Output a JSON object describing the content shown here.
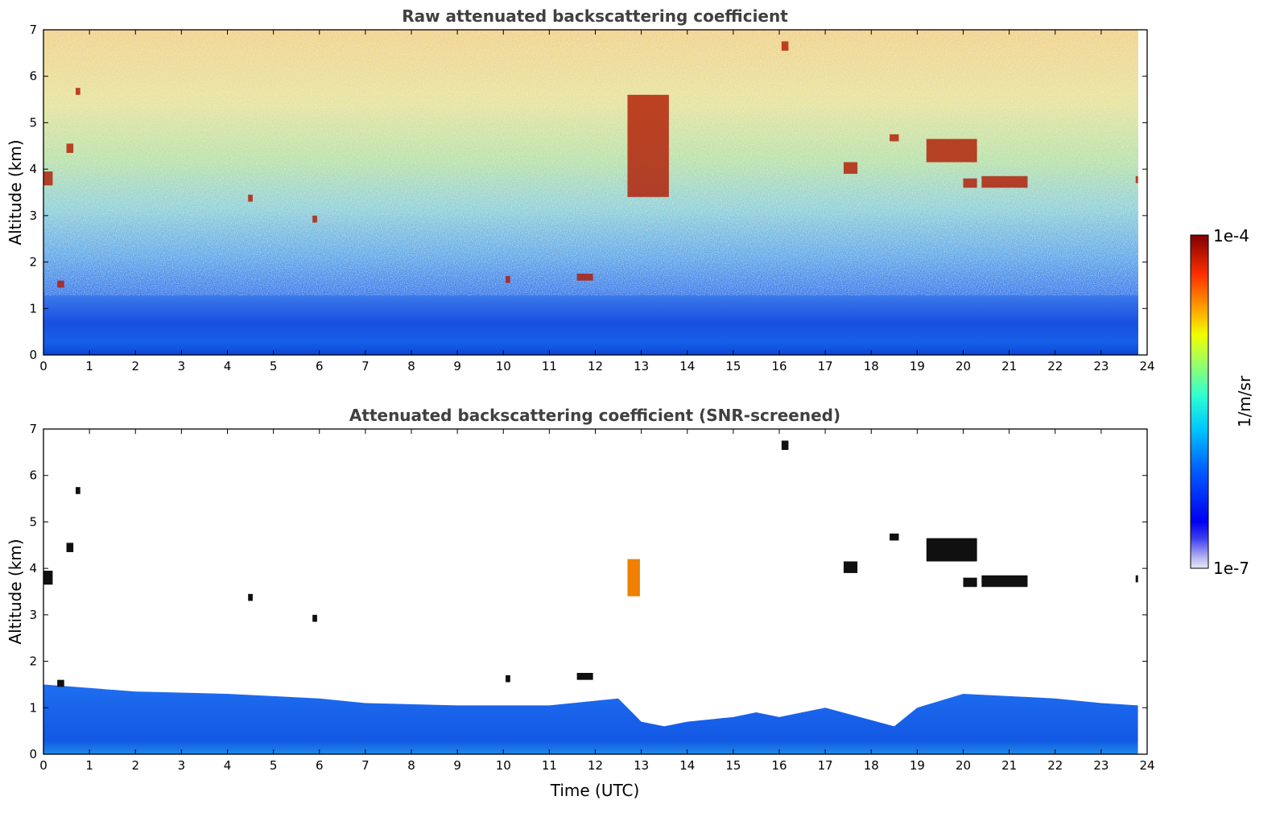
{
  "chart_data": [
    {
      "type": "heatmap",
      "title": "Raw attenuated backscattering coefficient",
      "ylabel": "Altitude (km)",
      "xlabel": "",
      "xlim": [
        0,
        24
      ],
      "ylim": [
        0,
        7
      ],
      "xticks": [
        "0",
        "1",
        "2",
        "3",
        "4",
        "5",
        "6",
        "7",
        "8",
        "9",
        "10",
        "11",
        "12",
        "13",
        "14",
        "15",
        "16",
        "17",
        "18",
        "19",
        "20",
        "21",
        "22",
        "23",
        "24"
      ],
      "yticks": [
        "0",
        "1",
        "2",
        "3",
        "4",
        "5",
        "6",
        "7"
      ],
      "data_end_hour": 23.8,
      "features": [
        {
          "kind": "cloud",
          "t": [
            0.0,
            0.2
          ],
          "alt": [
            3.65,
            3.95
          ]
        },
        {
          "kind": "cloud",
          "t": [
            0.5,
            0.65
          ],
          "alt": [
            4.35,
            4.55
          ]
        },
        {
          "kind": "cloud",
          "t": [
            0.3,
            0.45
          ],
          "alt": [
            1.45,
            1.6
          ]
        },
        {
          "kind": "cloud",
          "t": [
            0.7,
            0.8
          ],
          "alt": [
            5.6,
            5.75
          ]
        },
        {
          "kind": "cloud",
          "t": [
            4.45,
            4.55
          ],
          "alt": [
            3.3,
            3.45
          ]
        },
        {
          "kind": "cloud",
          "t": [
            5.85,
            5.95
          ],
          "alt": [
            2.85,
            3.0
          ]
        },
        {
          "kind": "cloud",
          "t": [
            10.05,
            10.15
          ],
          "alt": [
            1.55,
            1.7
          ]
        },
        {
          "kind": "cloud",
          "t": [
            11.6,
            11.95
          ],
          "alt": [
            1.6,
            1.75
          ]
        },
        {
          "kind": "cloud",
          "t": [
            12.7,
            13.6
          ],
          "alt": [
            3.4,
            5.6
          ]
        },
        {
          "kind": "cloud",
          "t": [
            16.05,
            16.2
          ],
          "alt": [
            6.55,
            6.75
          ]
        },
        {
          "kind": "cloud",
          "t": [
            17.4,
            17.7
          ],
          "alt": [
            3.9,
            4.15
          ]
        },
        {
          "kind": "cloud",
          "t": [
            18.4,
            18.6
          ],
          "alt": [
            4.6,
            4.75
          ]
        },
        {
          "kind": "cloud",
          "t": [
            19.2,
            20.3
          ],
          "alt": [
            4.15,
            4.65
          ]
        },
        {
          "kind": "cloud",
          "t": [
            20.0,
            20.3
          ],
          "alt": [
            3.6,
            3.8
          ]
        },
        {
          "kind": "cloud",
          "t": [
            20.4,
            21.4
          ],
          "alt": [
            3.6,
            3.85
          ]
        },
        {
          "kind": "cloud",
          "t": [
            23.75,
            23.8
          ],
          "alt": [
            3.7,
            3.85
          ]
        }
      ]
    },
    {
      "type": "heatmap",
      "title": "Attenuated backscattering coefficient (SNR-screened)",
      "ylabel": "Altitude (km)",
      "xlabel": "Time (UTC)",
      "xlim": [
        0,
        24
      ],
      "ylim": [
        0,
        7
      ],
      "xticks": [
        "0",
        "1",
        "2",
        "3",
        "4",
        "5",
        "6",
        "7",
        "8",
        "9",
        "10",
        "11",
        "12",
        "13",
        "14",
        "15",
        "16",
        "17",
        "18",
        "19",
        "20",
        "21",
        "22",
        "23",
        "24"
      ],
      "yticks": [
        "0",
        "1",
        "2",
        "3",
        "4",
        "5",
        "6",
        "7"
      ],
      "data_end_hour": 23.8,
      "boundary_layer_top_km": [
        [
          0,
          1.5
        ],
        [
          2,
          1.35
        ],
        [
          4,
          1.3
        ],
        [
          6,
          1.2
        ],
        [
          7,
          1.1
        ],
        [
          9,
          1.05
        ],
        [
          11,
          1.05
        ],
        [
          12.5,
          1.2
        ],
        [
          13.0,
          0.7
        ],
        [
          13.5,
          0.6
        ],
        [
          14,
          0.7
        ],
        [
          15,
          0.8
        ],
        [
          15.5,
          0.9
        ],
        [
          16,
          0.8
        ],
        [
          17,
          1.0
        ],
        [
          18.5,
          0.6
        ],
        [
          19,
          1.0
        ],
        [
          20,
          1.3
        ],
        [
          21,
          1.25
        ],
        [
          22,
          1.2
        ],
        [
          23,
          1.1
        ],
        [
          23.8,
          1.05
        ]
      ]
    }
  ],
  "colorbar": {
    "label": "1/m/sr",
    "max_label": "1e-4",
    "min_label": "1e-7",
    "scale": "log",
    "colormap": "jet"
  },
  "colors": {
    "title": "#404040",
    "axis": "#000000",
    "background": "#ffffff"
  }
}
